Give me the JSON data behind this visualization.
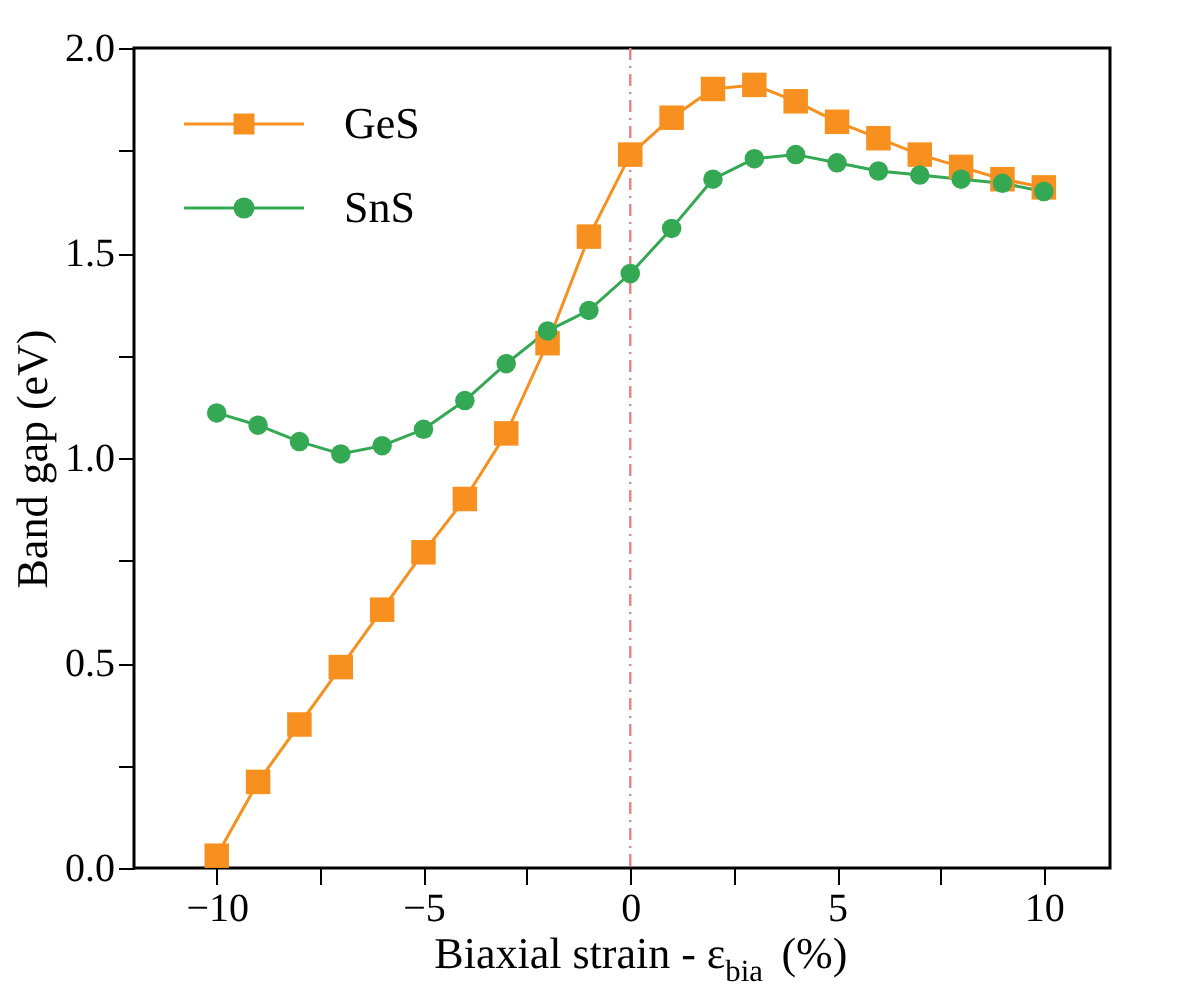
{
  "chart_data": {
    "type": "line",
    "xlabel": "Biaxial strain - ε$_{bia}$ (%)",
    "ylabel": "Band gap  (eV)",
    "x": [
      -10,
      -9,
      -8,
      -7,
      -6,
      -5,
      -4,
      -3,
      -2,
      -1,
      0,
      1,
      2,
      3,
      4,
      5,
      6,
      7,
      8,
      9,
      10
    ],
    "series": [
      {
        "name": "GeS",
        "color": "#f7901e",
        "marker": "square",
        "values": [
          0.03,
          0.21,
          0.35,
          0.49,
          0.63,
          0.77,
          0.9,
          1.06,
          1.28,
          1.54,
          1.74,
          1.83,
          1.9,
          1.91,
          1.87,
          1.82,
          1.78,
          1.74,
          1.71,
          1.68,
          1.66
        ]
      },
      {
        "name": "SnS",
        "color": "#34a853",
        "marker": "circle",
        "values": [
          1.11,
          1.08,
          1.04,
          1.01,
          1.03,
          1.07,
          1.14,
          1.23,
          1.31,
          1.36,
          1.45,
          1.56,
          1.68,
          1.73,
          1.74,
          1.72,
          1.7,
          1.69,
          1.68,
          1.67,
          1.65
        ]
      }
    ],
    "xlim": [
      -12,
      11.6
    ],
    "xticks": [
      {
        "value": -10,
        "label": "−10"
      },
      {
        "value": -7.5,
        "label": null
      },
      {
        "value": -5,
        "label": "−5"
      },
      {
        "value": -2.5,
        "label": null
      },
      0,
      {
        "value": 2.5,
        "label": null
      },
      5,
      {
        "value": 7.5,
        "label": null
      },
      10
    ],
    "ylim": [
      0,
      2
    ],
    "yticks": [
      {
        "value": 0,
        "label": "0.0"
      },
      {
        "value": 0.25,
        "label": null
      },
      {
        "value": 0.5,
        "label": "0.5"
      },
      {
        "value": 0.75,
        "label": null
      },
      {
        "value": 1,
        "label": "1.0"
      },
      {
        "value": 1.25,
        "label": null
      },
      {
        "value": 1.5,
        "label": "1.5"
      },
      {
        "value": 1.75,
        "label": null
      },
      {
        "value": 2,
        "label": "2.0"
      }
    ],
    "ref_lines": [
      {
        "axis": "x",
        "value": 0,
        "color": "#f08080",
        "line_style": "dashdot"
      }
    ],
    "legend": "top left",
    "grid": false,
    "line_style": "solid"
  }
}
